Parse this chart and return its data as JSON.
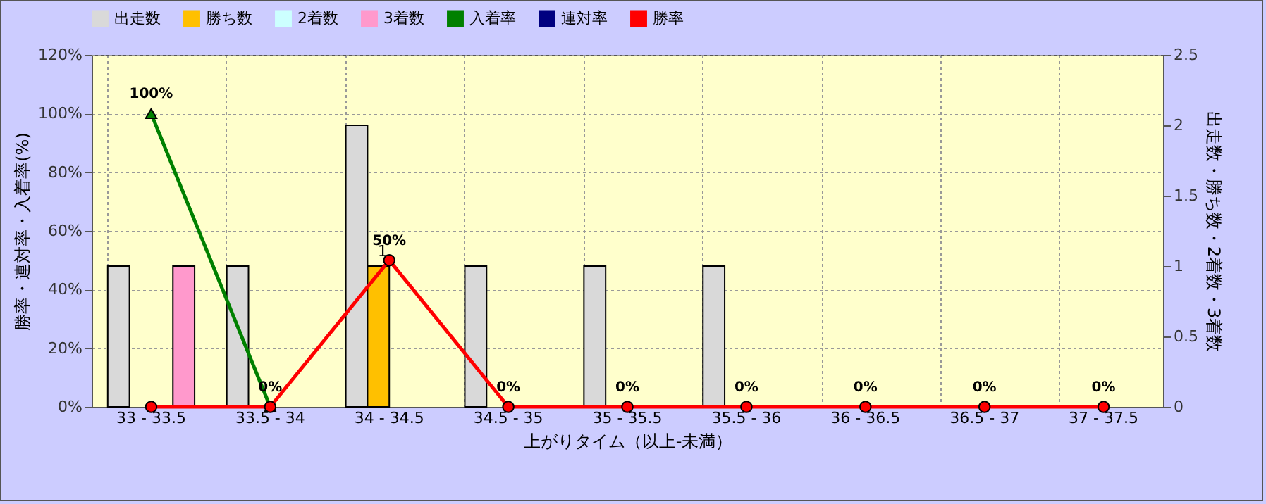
{
  "chart_data": {
    "type": "bar",
    "categories": [
      "33 - 33.5",
      "33.5 - 34",
      "34 - 34.5",
      "34.5 - 35",
      "35 - 35.5",
      "35.5 - 36",
      "36 - 36.5",
      "36.5 - 37",
      "37 - 37.5"
    ],
    "xlabel": "上がりタイム（以上-未満）",
    "ylabel": "勝率・連対率・入着率(%)",
    "y2label": "出走数・勝ち数・2着数・3着数",
    "series": [
      {
        "name": "出走数",
        "axis": "y2",
        "color": "#d9d9d9",
        "values": [
          1,
          1,
          2,
          1,
          1,
          1,
          0,
          0,
          0
        ]
      },
      {
        "name": "勝ち数",
        "axis": "y2",
        "color": "#ffc000",
        "values": [
          0,
          0,
          1,
          0,
          0,
          0,
          0,
          0,
          0
        ],
        "value_labels": [
          null,
          null,
          "1",
          null,
          null,
          null,
          null,
          null,
          null
        ]
      },
      {
        "name": "2着数",
        "axis": "y2",
        "color": "#ccffff",
        "values": [
          0,
          0,
          0,
          0,
          0,
          0,
          0,
          0,
          0
        ]
      },
      {
        "name": "3着数",
        "axis": "y2",
        "color": "#ff99cc",
        "values": [
          1,
          0,
          0,
          0,
          0,
          0,
          0,
          0,
          0
        ]
      },
      {
        "name": "入着率",
        "type": "line",
        "marker": "triangle",
        "color": "#008000",
        "values": [
          100,
          0,
          null,
          null,
          null,
          null,
          null,
          null,
          null
        ],
        "value_labels": [
          "100%",
          null,
          null,
          null,
          null,
          null,
          null,
          null,
          null
        ]
      },
      {
        "name": "連対率",
        "type": "line",
        "marker": "diamond",
        "color": "#000080",
        "values": [
          null,
          null,
          null,
          null,
          null,
          null,
          null,
          null,
          null
        ]
      },
      {
        "name": "勝率",
        "type": "line",
        "marker": "circle",
        "color": "#ff0000",
        "values": [
          0,
          0,
          50,
          0,
          0,
          0,
          0,
          0,
          0
        ],
        "value_labels": [
          null,
          "0%",
          "50%",
          "0%",
          "0%",
          "0%",
          "0%",
          "0%",
          "0%"
        ]
      }
    ],
    "ylim": [
      0,
      120
    ],
    "yticks": [
      {
        "value": 0,
        "label": "0%"
      },
      {
        "value": 20,
        "label": "20%"
      },
      {
        "value": 40,
        "label": "40%"
      },
      {
        "value": 60,
        "label": "60%"
      },
      {
        "value": 80,
        "label": "80%"
      },
      {
        "value": 100,
        "label": "100%"
      },
      {
        "value": 120,
        "label": "120%"
      }
    ],
    "y2lim": [
      0,
      2.5
    ],
    "y2ticks": [
      0,
      0.5,
      1,
      1.5,
      2,
      2.5
    ],
    "grid": true,
    "legend": "top"
  }
}
